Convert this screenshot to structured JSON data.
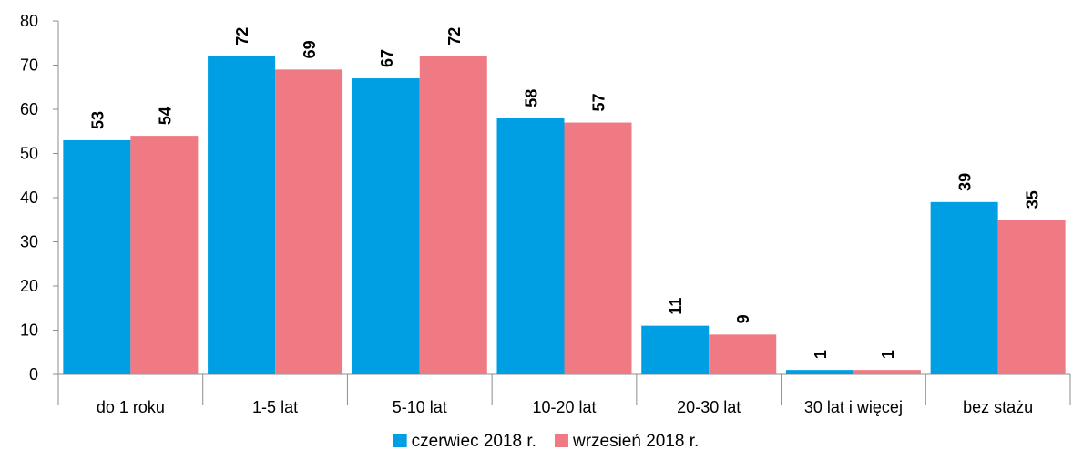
{
  "chart_data": {
    "type": "bar",
    "title": "",
    "xlabel": "",
    "ylabel": "",
    "categories": [
      "do 1 roku",
      "1-5 lat",
      "5-10 lat",
      "10-20 lat",
      "20-30 lat",
      "30 lat i więcej",
      "bez stażu"
    ],
    "series": [
      {
        "name": "czerwiec 2018 r.",
        "color": "#009FE3",
        "values": [
          53,
          72,
          67,
          58,
          11,
          1,
          39
        ]
      },
      {
        "name": "wrzesień 2018 r.",
        "color": "#F07A83",
        "values": [
          54,
          69,
          72,
          57,
          9,
          1,
          35
        ]
      }
    ],
    "ylim": [
      0,
      80
    ],
    "yticks": [
      0,
      10,
      20,
      30,
      40,
      50,
      60,
      70,
      80
    ],
    "grid": false,
    "legend_position": "bottom",
    "data_labels": "vertical-above-bar"
  }
}
